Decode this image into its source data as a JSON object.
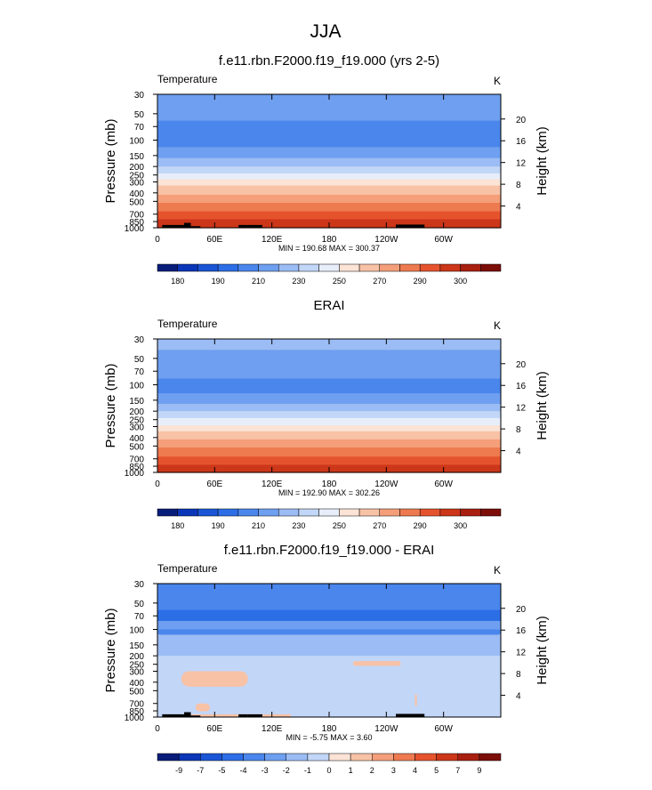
{
  "figure": {
    "title": "JJA"
  },
  "chart_data": [
    {
      "type": "heatmap",
      "title": "f.e11.rbn.F2000.f19_f19.000 (yrs 2-5)",
      "left_label": "Temperature",
      "right_label": "K",
      "ylabel": "Pressure (mb)",
      "y2label": "Height (km)",
      "xlabel": "",
      "x_ticks": [
        "0",
        "60E",
        "120E",
        "180",
        "120W",
        "60W"
      ],
      "y_ticks": [
        "30",
        "50",
        "70",
        "100",
        "150",
        "200",
        "250",
        "300",
        "400",
        "500",
        "700",
        "850",
        "1000"
      ],
      "y2_ticks": [
        "20",
        "16",
        "12",
        "8",
        "4"
      ],
      "stats": "MIN = 190.68  MAX = 300.37",
      "colorbar_labels": [
        "180",
        "190",
        "210",
        "230",
        "250",
        "270",
        "290",
        "300"
      ],
      "layers": [
        {
          "p_top": 30,
          "p_bot": 40,
          "value": 205
        },
        {
          "p_top": 40,
          "p_bot": 60,
          "value": 200
        },
        {
          "p_top": 60,
          "p_bot": 120,
          "value": 195
        },
        {
          "p_top": 120,
          "p_bot": 160,
          "value": 200
        },
        {
          "p_top": 160,
          "p_bot": 200,
          "value": 210
        },
        {
          "p_top": 200,
          "p_bot": 240,
          "value": 220
        },
        {
          "p_top": 240,
          "p_bot": 280,
          "value": 230
        },
        {
          "p_top": 280,
          "p_bot": 330,
          "value": 240
        },
        {
          "p_top": 330,
          "p_bot": 420,
          "value": 250
        },
        {
          "p_top": 420,
          "p_bot": 520,
          "value": 260
        },
        {
          "p_top": 520,
          "p_bot": 650,
          "value": 270
        },
        {
          "p_top": 650,
          "p_bot": 800,
          "value": 280
        },
        {
          "p_top": 800,
          "p_bot": 1000,
          "value": 290
        }
      ],
      "topography": true
    },
    {
      "type": "heatmap",
      "title": "ERAI",
      "left_label": "Temperature",
      "right_label": "K",
      "ylabel": "Pressure (mb)",
      "y2label": "Height (km)",
      "xlabel": "",
      "x_ticks": [
        "0",
        "60E",
        "120E",
        "180",
        "120W",
        "60W"
      ],
      "y_ticks": [
        "30",
        "50",
        "70",
        "100",
        "150",
        "200",
        "250",
        "300",
        "400",
        "500",
        "700",
        "850",
        "1000"
      ],
      "y2_ticks": [
        "20",
        "16",
        "12",
        "8",
        "4"
      ],
      "stats": "MIN = 192.90  MAX = 302.26",
      "colorbar_labels": [
        "180",
        "190",
        "210",
        "230",
        "250",
        "270",
        "290",
        "300"
      ],
      "layers": [
        {
          "p_top": 30,
          "p_bot": 40,
          "value": 210
        },
        {
          "p_top": 40,
          "p_bot": 60,
          "value": 205
        },
        {
          "p_top": 60,
          "p_bot": 85,
          "value": 200
        },
        {
          "p_top": 85,
          "p_bot": 125,
          "value": 195
        },
        {
          "p_top": 125,
          "p_bot": 165,
          "value": 200
        },
        {
          "p_top": 165,
          "p_bot": 200,
          "value": 210
        },
        {
          "p_top": 200,
          "p_bot": 240,
          "value": 220
        },
        {
          "p_top": 240,
          "p_bot": 290,
          "value": 230
        },
        {
          "p_top": 290,
          "p_bot": 340,
          "value": 240
        },
        {
          "p_top": 340,
          "p_bot": 420,
          "value": 250
        },
        {
          "p_top": 420,
          "p_bot": 520,
          "value": 260
        },
        {
          "p_top": 520,
          "p_bot": 660,
          "value": 270
        },
        {
          "p_top": 660,
          "p_bot": 820,
          "value": 280
        },
        {
          "p_top": 820,
          "p_bot": 1000,
          "value": 290
        }
      ],
      "topography": false
    },
    {
      "type": "heatmap",
      "title": "f.e11.rbn.F2000.f19_f19.000 - ERAI",
      "left_label": "Temperature",
      "right_label": "K",
      "ylabel": "Pressure (mb)",
      "y2label": "Height (km)",
      "xlabel": "",
      "x_ticks": [
        "0",
        "60E",
        "120E",
        "180",
        "120W",
        "60W"
      ],
      "y_ticks": [
        "30",
        "50",
        "70",
        "100",
        "150",
        "200",
        "250",
        "300",
        "400",
        "500",
        "700",
        "850",
        "1000"
      ],
      "y2_ticks": [
        "20",
        "16",
        "12",
        "8",
        "4"
      ],
      "stats": "MIN = -5.75  MAX =  3.60",
      "colorbar_labels": [
        "-9",
        "-7",
        "-5",
        "-4",
        "-3",
        "-2",
        "-1",
        "0",
        "1",
        "2",
        "3",
        "4",
        "5",
        "7",
        "9"
      ],
      "layers": [
        {
          "p_top": 30,
          "p_bot": 60,
          "value": -4
        },
        {
          "p_top": 60,
          "p_bot": 80,
          "value": -5
        },
        {
          "p_top": 80,
          "p_bot": 110,
          "value": -3
        },
        {
          "p_top": 110,
          "p_bot": 200,
          "value": -2
        },
        {
          "p_top": 200,
          "p_bot": 1000,
          "value": -1
        }
      ],
      "anomalies": [
        {
          "lon": [
            25,
            95
          ],
          "p": [
            300,
            450
          ],
          "value": 1
        },
        {
          "lon": [
            205,
            255
          ],
          "p": [
            230,
            260
          ],
          "value": 1
        },
        {
          "lon": [
            30,
            140
          ],
          "p": [
            930,
            1000
          ],
          "value": 1
        },
        {
          "lon": [
            40,
            55
          ],
          "p": [
            700,
            860
          ],
          "value": 1
        },
        {
          "lon": [
            270,
            272
          ],
          "p": [
            550,
            750
          ],
          "value": 1
        },
        {
          "lon": [
            0,
            360
          ],
          "p": [
            100,
            115
          ],
          "value": -4
        },
        {
          "lon": [
            125,
            240
          ],
          "p": [
            150,
            180
          ],
          "value": -2
        }
      ],
      "topography": true
    }
  ],
  "colorscales": {
    "full": {
      "levels": [
        175,
        180,
        185,
        190,
        200,
        210,
        220,
        230,
        240,
        250,
        260,
        270,
        280,
        290,
        295,
        300,
        305
      ],
      "colors": [
        "#081d7a",
        "#0a36b8",
        "#1a55d6",
        "#2c6ee6",
        "#4a86ec",
        "#6e9ff0",
        "#9bbcf4",
        "#c2d6f7",
        "#e7eefa",
        "#fbe3d6",
        "#f8c2a6",
        "#f49f7a",
        "#ee7a50",
        "#e5532d",
        "#cc3619",
        "#a91f10",
        "#7b0e08"
      ]
    },
    "diff": {
      "levels": [
        -9,
        -7,
        -5,
        -4,
        -3,
        -2,
        -1,
        0,
        1,
        2,
        3,
        4,
        5,
        7,
        9
      ],
      "colors": [
        "#081d7a",
        "#0a36b8",
        "#1a55d6",
        "#2c6ee6",
        "#4a86ec",
        "#6e9ff0",
        "#9bbcf4",
        "#c2d6f7",
        "#fbe3d6",
        "#f8c2a6",
        "#f49f7a",
        "#ee7a50",
        "#e5532d",
        "#cc3619",
        "#a91f10",
        "#7b0e08"
      ]
    }
  }
}
